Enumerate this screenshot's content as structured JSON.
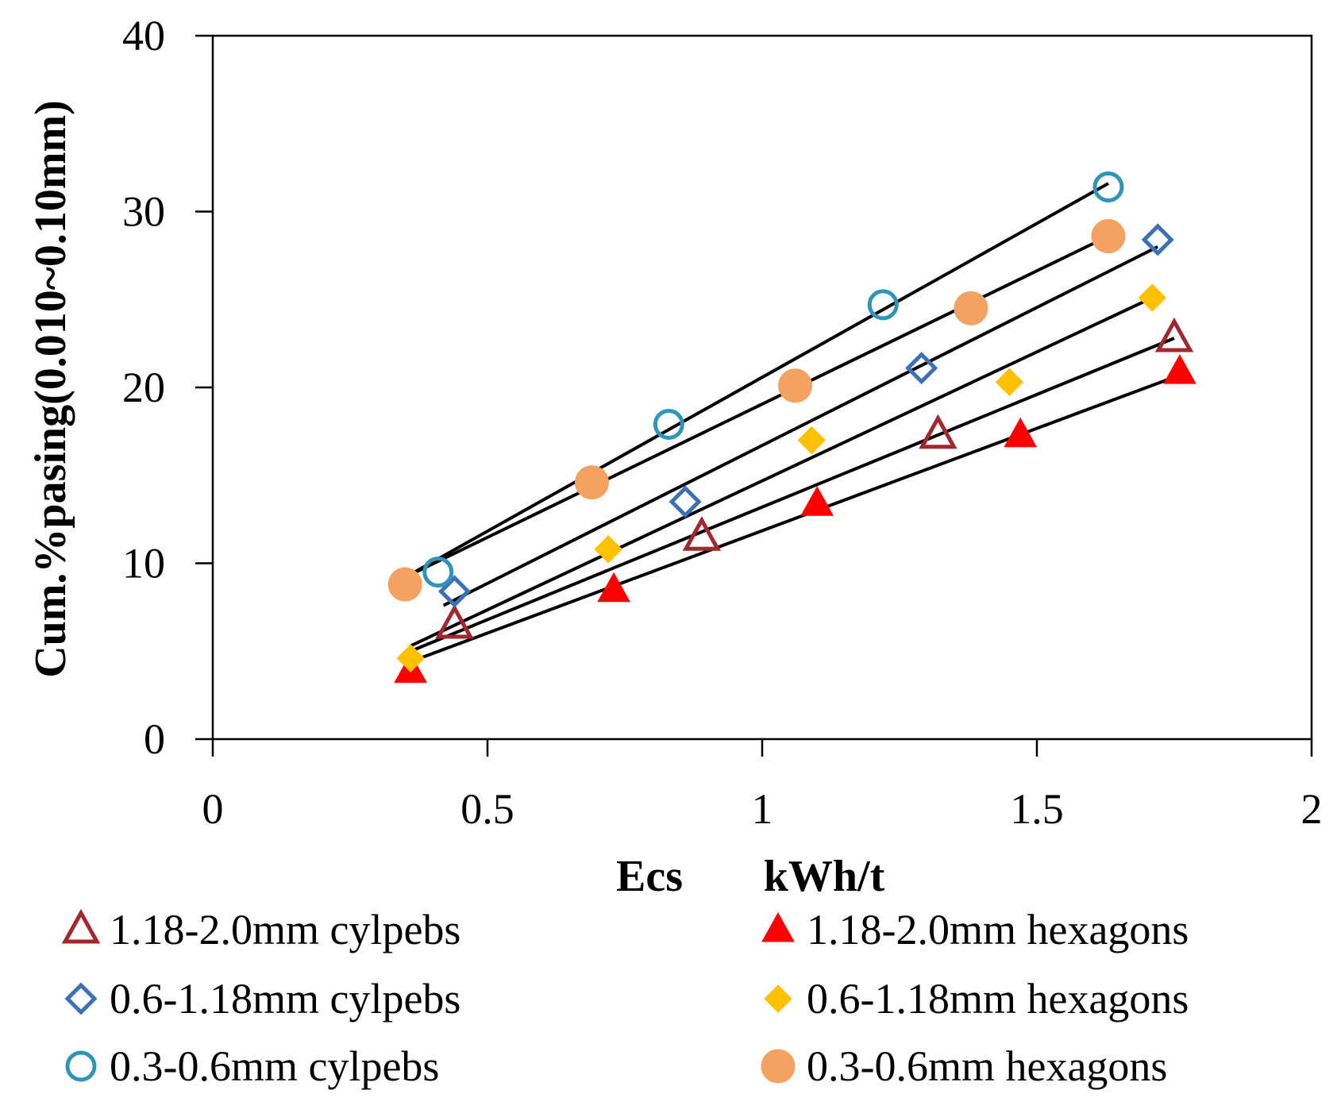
{
  "chart_data": {
    "type": "scatter",
    "title": "",
    "xlabel": "Ecs kWh/t",
    "xlabel_parts": [
      "Ecs",
      "kWh/t"
    ],
    "ylabel": "Cum.%pasing(0.010~0.10mm)",
    "xlim": [
      0,
      2
    ],
    "ylim": [
      0,
      40
    ],
    "x_ticks": [
      0,
      0.5,
      1,
      1.5,
      2
    ],
    "y_ticks": [
      0,
      10,
      20,
      30,
      40
    ],
    "x_tick_labels": [
      "0",
      "0.5",
      "1",
      "1.5",
      "2"
    ],
    "y_tick_labels": [
      "0",
      "10",
      "20",
      "30",
      "40"
    ],
    "grid": false,
    "legend_position": "bottom",
    "series": [
      {
        "name": "1.18-2.0mm cylpebs",
        "marker": "triangle-open",
        "color": "#a0282f",
        "points": [
          [
            0.44,
            6.5
          ],
          [
            0.89,
            11.5
          ],
          [
            1.32,
            17.3
          ],
          [
            1.75,
            22.8
          ]
        ],
        "fit": [
          [
            0.36,
            5.0
          ],
          [
            1.75,
            22.8
          ]
        ]
      },
      {
        "name": "1.18-2.0mm hexagons",
        "marker": "triangle-filled",
        "color": "#ff0000",
        "points": [
          [
            0.36,
            3.9
          ],
          [
            0.73,
            8.5
          ],
          [
            1.1,
            13.4
          ],
          [
            1.47,
            17.3
          ],
          [
            1.76,
            20.9
          ]
        ],
        "fit": [
          [
            0.36,
            4.4
          ],
          [
            1.76,
            20.7
          ]
        ]
      },
      {
        "name": "0.6-1.18mm cylpebs",
        "marker": "diamond-open",
        "color": "#3d6fb6",
        "points": [
          [
            0.44,
            8.4
          ],
          [
            0.86,
            13.5
          ],
          [
            1.29,
            21.1
          ],
          [
            1.72,
            28.4
          ]
        ],
        "fit": [
          [
            0.42,
            7.6
          ],
          [
            1.72,
            28.0
          ]
        ]
      },
      {
        "name": "0.6-1.18mm hexagons",
        "marker": "diamond-filled",
        "color": "#ffc000",
        "points": [
          [
            0.36,
            4.6
          ],
          [
            0.72,
            10.8
          ],
          [
            1.09,
            17.0
          ],
          [
            1.45,
            20.3
          ],
          [
            1.71,
            25.1
          ]
        ],
        "fit": [
          [
            0.36,
            5.3
          ],
          [
            1.71,
            25.1
          ]
        ]
      },
      {
        "name": "0.3-0.6mm cylpebs",
        "marker": "circle-open",
        "color": "#2e95b8",
        "points": [
          [
            0.41,
            9.5
          ],
          [
            0.83,
            17.9
          ],
          [
            1.22,
            24.7
          ],
          [
            1.63,
            31.4
          ]
        ],
        "fit": [
          [
            0.35,
            9.2
          ],
          [
            1.63,
            31.6
          ]
        ]
      },
      {
        "name": "0.3-0.6mm hexagons",
        "marker": "circle-filled",
        "color": "#f4a261",
        "points": [
          [
            0.35,
            8.8
          ],
          [
            0.69,
            14.6
          ],
          [
            1.06,
            20.1
          ],
          [
            1.38,
            24.5
          ],
          [
            1.63,
            28.6
          ]
        ],
        "fit": [
          [
            0.35,
            9.2
          ],
          [
            1.63,
            28.6
          ]
        ]
      }
    ]
  }
}
